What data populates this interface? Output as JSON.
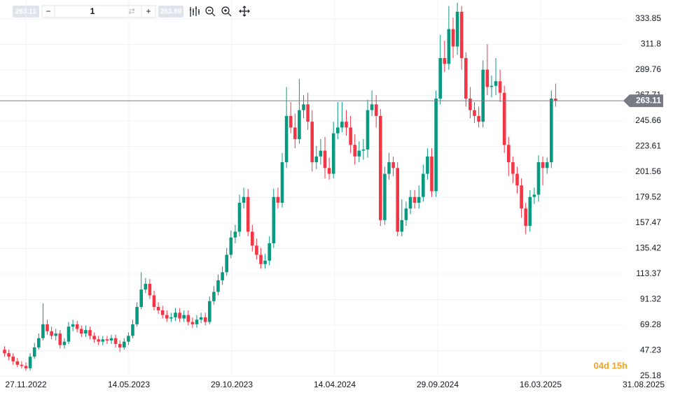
{
  "toolbar": {
    "price_left": "263.11",
    "quantity": "1",
    "price_right": "263.69"
  },
  "chart_data": {
    "type": "candlestick",
    "ylim": [
      24,
      350.16
    ],
    "yticks": [
      333.85,
      311.8,
      289.76,
      267.71,
      245.66,
      223.61,
      201.56,
      179.52,
      157.47,
      135.42,
      113.37,
      91.32,
      69.28,
      47.23,
      25.18
    ],
    "xticks": [
      "27.11.2022",
      "14.05.2023",
      "29.10.2023",
      "14.04.2024",
      "29.09.2024",
      "16.03.2025",
      "31.08.2025"
    ],
    "up_color": "#089981",
    "down_color": "#f23645",
    "grid": true,
    "last_price": 263.11,
    "last_price_label": "263.11",
    "countdown": "04d 15h",
    "open": [
      48,
      45,
      42,
      38,
      35,
      34,
      32,
      42,
      50,
      58,
      70,
      64,
      60,
      62,
      52,
      55,
      68,
      70,
      66,
      62,
      65,
      60,
      57,
      55,
      57,
      56,
      58,
      53,
      50,
      55,
      60,
      70,
      85,
      100,
      105,
      95,
      85,
      82,
      78,
      75,
      76,
      80,
      75,
      78,
      72,
      70,
      74,
      76,
      72,
      90,
      98,
      108,
      115,
      130,
      145,
      150,
      175,
      180,
      150,
      138,
      130,
      122,
      125,
      140,
      180,
      175,
      210,
      250,
      240,
      230,
      255,
      260,
      245,
      210,
      215,
      220,
      205,
      200,
      235,
      240,
      245,
      240,
      225,
      215,
      220,
      221,
      255,
      260,
      250,
      160,
      200,
      210,
      205,
      150,
      160,
      170,
      180,
      175,
      180,
      200,
      215,
      185,
      265,
      300,
      295,
      325,
      310,
      340,
      300,
      265,
      255,
      250,
      245,
      290,
      275,
      276,
      280,
      270,
      225,
      210,
      200,
      190,
      170,
      155,
      180,
      182,
      210,
      205,
      210,
      265
    ],
    "high": [
      51,
      48,
      45,
      41,
      38,
      37,
      45,
      54,
      62,
      88,
      74,
      68,
      66,
      65,
      58,
      72,
      74,
      73,
      69,
      69,
      68,
      63,
      60,
      60,
      60,
      61,
      61,
      56,
      58,
      63,
      74,
      89,
      115,
      110,
      109,
      99,
      89,
      86,
      82,
      80,
      84,
      84,
      82,
      82,
      76,
      78,
      80,
      80,
      94,
      103,
      113,
      120,
      136,
      151,
      156,
      182,
      188,
      187,
      156,
      144,
      136,
      131,
      146,
      187,
      188,
      218,
      275,
      262,
      252,
      282,
      268,
      270,
      255,
      224,
      230,
      232,
      214,
      245,
      262,
      262,
      255,
      250,
      234,
      228,
      230,
      264,
      272,
      268,
      256,
      206,
      218,
      215,
      210,
      178,
      176,
      186,
      186,
      190,
      208,
      222,
      222,
      272,
      320,
      315,
      345,
      335,
      348,
      345,
      305,
      275,
      262,
      258,
      298,
      312,
      285,
      300,
      290,
      276,
      232,
      215,
      206,
      196,
      175,
      186,
      188,
      216,
      215,
      214,
      272,
      278
    ],
    "low": [
      42,
      39,
      35,
      33,
      32,
      30,
      30,
      40,
      48,
      56,
      61,
      57,
      56,
      49,
      49,
      53,
      64,
      63,
      59,
      59,
      57,
      54,
      52,
      52,
      53,
      53,
      50,
      46,
      48,
      52,
      58,
      68,
      83,
      97,
      92,
      82,
      79,
      75,
      72,
      72,
      73,
      72,
      72,
      69,
      67,
      67,
      71,
      69,
      70,
      87,
      95,
      104,
      112,
      127,
      140,
      146,
      170,
      146,
      133,
      126,
      118,
      118,
      121,
      136,
      170,
      171,
      205,
      235,
      222,
      226,
      248,
      238,
      202,
      204,
      208,
      196,
      195,
      196,
      230,
      236,
      233,
      218,
      208,
      210,
      212,
      214,
      250,
      240,
      155,
      156,
      195,
      198,
      146,
      146,
      155,
      165,
      170,
      170,
      176,
      195,
      180,
      180,
      260,
      288,
      290,
      300,
      303,
      290,
      258,
      248,
      244,
      240,
      240,
      268,
      266,
      268,
      262,
      218,
      198,
      192,
      183,
      162,
      148,
      150,
      174,
      176,
      190,
      200,
      205,
      258
    ],
    "close": [
      45,
      42,
      38,
      35,
      34,
      32,
      42,
      50,
      58,
      70,
      64,
      60,
      62,
      52,
      55,
      68,
      70,
      66,
      62,
      65,
      60,
      57,
      55,
      57,
      56,
      58,
      53,
      50,
      55,
      60,
      70,
      85,
      100,
      105,
      95,
      85,
      82,
      78,
      75,
      76,
      80,
      75,
      78,
      72,
      70,
      74,
      76,
      72,
      90,
      98,
      108,
      115,
      130,
      145,
      150,
      175,
      180,
      150,
      138,
      130,
      122,
      125,
      140,
      180,
      175,
      210,
      250,
      240,
      230,
      255,
      260,
      245,
      210,
      215,
      220,
      205,
      200,
      235,
      240,
      245,
      240,
      225,
      215,
      220,
      221,
      255,
      260,
      250,
      160,
      200,
      210,
      205,
      150,
      160,
      170,
      180,
      175,
      180,
      200,
      215,
      185,
      265,
      300,
      295,
      325,
      310,
      340,
      300,
      265,
      255,
      250,
      245,
      290,
      275,
      276,
      280,
      270,
      225,
      210,
      200,
      190,
      170,
      155,
      180,
      182,
      210,
      205,
      210,
      265,
      263.11
    ]
  }
}
